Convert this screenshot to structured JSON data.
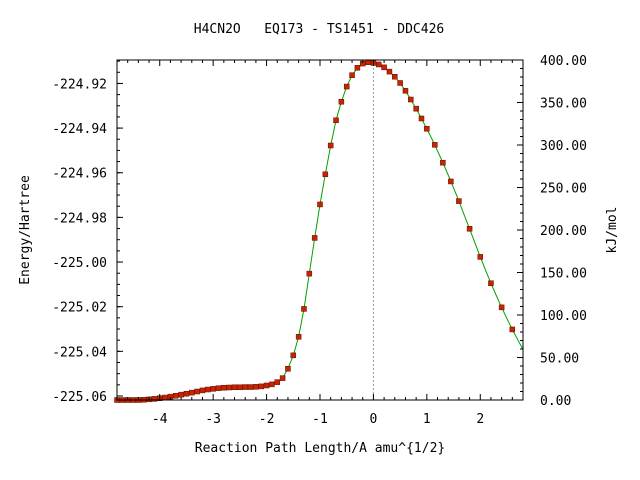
{
  "chart_data": {
    "type": "line",
    "title": "H4CN2O   EQ173 - TS1451 - DDC426",
    "xlabel": "Reaction Path Length/A amu^{1/2}",
    "ylabel": "Energy/Hartree",
    "y2label": "kJ/mol",
    "xlim": [
      -4.8,
      2.8
    ],
    "ylim": [
      -225.0618,
      -224.9095
    ],
    "y2lim": [
      0,
      400
    ],
    "x_ticks": [
      "-4",
      "-3",
      "-2",
      "-1",
      "0",
      "1",
      "2"
    ],
    "y_ticks": [
      "-224.92",
      "-224.94",
      "-224.96",
      "-224.98",
      "-225.00",
      "-225.02",
      "-225.04",
      "-225.06"
    ],
    "y2_ticks": [
      "400.00",
      "350.00",
      "300.00",
      "250.00",
      "200.00",
      "150.00",
      "100.00",
      "50.00",
      "0.00"
    ],
    "ts_x": 0,
    "line_color": "#00a000",
    "marker_color": "#cc2200",
    "series": [
      {
        "x": [
          -4.8,
          -4.7,
          -4.6,
          -4.5,
          -4.4,
          -4.3,
          -4.2,
          -4.1,
          -4.0,
          -3.9,
          -3.8,
          -3.7,
          -3.6,
          -3.5,
          -3.4,
          -3.3,
          -3.2,
          -3.1,
          -3.0,
          -2.9,
          -2.8,
          -2.7,
          -2.6,
          -2.5,
          -2.4,
          -2.3,
          -2.2,
          -2.1,
          -2.0,
          -1.9,
          -1.8,
          -1.7,
          -1.6,
          -1.5,
          -1.4,
          -1.3,
          -1.2,
          -1.1,
          -1.0,
          -0.9,
          -0.8,
          -0.7,
          -0.6,
          -0.5,
          -0.4,
          -0.3,
          -0.2,
          -0.1,
          0.0,
          0.1,
          0.2,
          0.3,
          0.4,
          0.5,
          0.6,
          0.7,
          0.8,
          0.9,
          1.0,
          1.1,
          1.2,
          1.3,
          1.4,
          1.5,
          1.6,
          1.7,
          1.8,
          1.9,
          2.0,
          2.1,
          2.2,
          2.3,
          2.4,
          2.5,
          2.6,
          2.7,
          2.8
        ],
        "y": [
          -225.0618,
          -225.0618,
          -225.0618,
          -225.0618,
          -225.0618,
          -225.0617,
          -225.0615,
          -225.0613,
          -225.061,
          -225.0607,
          -225.0603,
          -225.0599,
          -225.0594,
          -225.059,
          -225.0585,
          -225.058,
          -225.0575,
          -225.0571,
          -225.0568,
          -225.0565,
          -225.0563,
          -225.0562,
          -225.0561,
          -225.0561,
          -225.056,
          -225.056,
          -225.0559,
          -225.0557,
          -225.0553,
          -225.0548,
          -225.0538,
          -225.052,
          -225.0478,
          -225.0418,
          -225.0335,
          -225.021,
          -225.0052,
          -224.9892,
          -224.9742,
          -224.9607,
          -224.9478,
          -224.9365,
          -224.9282,
          -224.9214,
          -224.9163,
          -224.913,
          -224.9111,
          -224.9105,
          -224.9108,
          -224.9115,
          -224.9128,
          -224.9147,
          -224.917,
          -224.9198,
          -224.9233,
          -224.9272,
          -224.9313,
          -224.9357,
          -224.9403,
          -224.9451,
          -224.9502,
          -224.9555,
          -224.961,
          -224.9668,
          -224.9727,
          -224.9789,
          -224.9851,
          -224.9914,
          -224.9977,
          -225.0037,
          -225.0095,
          -225.015,
          -225.0203,
          -225.0254,
          -225.0302,
          -225.0348,
          -225.0392
        ]
      }
    ],
    "markers": {
      "x": [
        -4.8,
        -4.7,
        -4.6,
        -4.5,
        -4.4,
        -4.3,
        -4.2,
        -4.1,
        -4.0,
        -3.9,
        -3.8,
        -3.7,
        -3.6,
        -3.5,
        -3.4,
        -3.3,
        -3.2,
        -3.1,
        -3.0,
        -2.9,
        -2.8,
        -2.7,
        -2.6,
        -2.5,
        -2.4,
        -2.3,
        -2.2,
        -2.1,
        -2.0,
        -1.9,
        -1.8,
        -1.7,
        -1.6,
        -1.5,
        -1.4,
        -1.3,
        -1.2,
        -1.1,
        -1.0,
        -0.9,
        -0.8,
        -0.7,
        -0.6,
        -0.5,
        -0.4,
        -0.3,
        -0.2,
        -0.1,
        0.0,
        0.1,
        0.2,
        0.3,
        0.4,
        0.5,
        0.6,
        0.7,
        0.8,
        0.9,
        1.0,
        1.15,
        1.3,
        1.45,
        1.6,
        1.8,
        2.0,
        2.2,
        2.4,
        2.6
      ],
      "y": [
        -225.0618,
        -225.0618,
        -225.0618,
        -225.0618,
        -225.0618,
        -225.0617,
        -225.0615,
        -225.0613,
        -225.061,
        -225.0607,
        -225.0603,
        -225.0599,
        -225.0594,
        -225.059,
        -225.0585,
        -225.058,
        -225.0575,
        -225.0571,
        -225.0568,
        -225.0565,
        -225.0563,
        -225.0562,
        -225.0561,
        -225.0561,
        -225.056,
        -225.056,
        -225.0559,
        -225.0557,
        -225.0553,
        -225.0548,
        -225.0538,
        -225.052,
        -225.0478,
        -225.0418,
        -225.0335,
        -225.021,
        -225.0052,
        -224.9892,
        -224.9742,
        -224.9607,
        -224.9478,
        -224.9365,
        -224.9282,
        -224.9214,
        -224.9163,
        -224.913,
        -224.9111,
        -224.9105,
        -224.9108,
        -224.9115,
        -224.9128,
        -224.9147,
        -224.917,
        -224.9198,
        -224.9233,
        -224.9272,
        -224.9313,
        -224.9357,
        -224.9403,
        -224.9475,
        -224.9555,
        -224.9639,
        -224.9727,
        -224.9851,
        -224.9977,
        -225.0095,
        -225.0203,
        -225.0302
      ]
    }
  }
}
